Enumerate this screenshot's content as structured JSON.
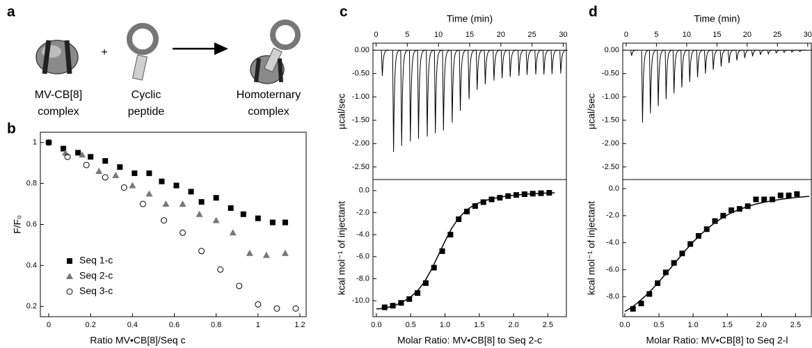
{
  "panel_labels": [
    "a",
    "b",
    "c",
    "d"
  ],
  "diagram": {
    "plus": "+",
    "items": [
      {
        "lines": [
          "MV-CB[8]",
          "complex"
        ]
      },
      {
        "lines": [
          "Cyclic",
          "peptide"
        ]
      },
      {
        "lines": [
          "Homoternary",
          "complex"
        ]
      }
    ]
  },
  "chart_data": [
    {
      "type": "scatter",
      "xlabel": "Ratio MV•CB[8]/Seq c",
      "ylabel": "F/F₀",
      "xlim": [
        -0.04,
        1.23
      ],
      "xticks": [
        0,
        0.2,
        0.4,
        0.6,
        0.8,
        1,
        1.2
      ],
      "ylim": [
        0.15,
        1.05
      ],
      "yticks": [
        0.2,
        0.4,
        0.6,
        0.8,
        1
      ],
      "legend": "lower left",
      "series": [
        {
          "name": "Seq 1-c",
          "marker": "square",
          "color": "#000000",
          "x": [
            0,
            0.07,
            0.14,
            0.2,
            0.27,
            0.34,
            0.41,
            0.48,
            0.54,
            0.61,
            0.68,
            0.73,
            0.8,
            0.87,
            0.93,
            1.0,
            1.07,
            1.13
          ],
          "values": [
            1.0,
            0.97,
            0.95,
            0.93,
            0.91,
            0.88,
            0.85,
            0.85,
            0.81,
            0.79,
            0.76,
            0.71,
            0.73,
            0.68,
            0.65,
            0.63,
            0.61,
            0.61
          ]
        },
        {
          "name": "Seq 2-c",
          "marker": "triangle",
          "color": "#777777",
          "x": [
            0.08,
            0.16,
            0.24,
            0.32,
            0.4,
            0.48,
            0.56,
            0.64,
            0.72,
            0.8,
            0.88,
            0.96,
            1.04,
            1.13
          ],
          "values": [
            0.95,
            0.94,
            0.86,
            0.84,
            0.79,
            0.75,
            0.7,
            0.7,
            0.65,
            0.62,
            0.56,
            0.46,
            0.45,
            0.46
          ]
        },
        {
          "name": "Seq 3-c",
          "marker": "circle",
          "color": "#000000",
          "x": [
            0,
            0.09,
            0.18,
            0.27,
            0.36,
            0.45,
            0.55,
            0.64,
            0.73,
            0.82,
            0.91,
            1.0,
            1.09,
            1.18
          ],
          "values": [
            1.0,
            0.93,
            0.89,
            0.83,
            0.78,
            0.7,
            0.62,
            0.56,
            0.47,
            0.38,
            0.3,
            0.21,
            0.19,
            0.19
          ]
        }
      ]
    },
    {
      "type": "thermogram",
      "xlabel": "Time (min)",
      "ylabel": "µcal/sec",
      "color": "#000000",
      "xlim": [
        -0.5,
        30.5
      ],
      "xticks": [
        0,
        5,
        10,
        15,
        20,
        25,
        30
      ],
      "ylim": [
        -2.77,
        0.15
      ],
      "yticks": [
        {
          "value": 0,
          "label": "0.00"
        },
        {
          "value": -0.5,
          "label": "-0.50"
        },
        {
          "value": -1,
          "label": "-1.00"
        },
        {
          "value": -1.5,
          "label": "-1.50"
        },
        {
          "value": -2,
          "label": "-2.00"
        },
        {
          "value": -2.5,
          "label": "-2.50"
        }
      ],
      "x": [
        0.9,
        2.7,
        4.0,
        5.4,
        6.7,
        8.1,
        9.4,
        10.7,
        12.1,
        13.4,
        14.8,
        16.1,
        17.4,
        18.8,
        20.1,
        21.4,
        22.8,
        24.1,
        25.5,
        26.8,
        28.1,
        29.5
      ],
      "values": [
        -0.55,
        -2.18,
        -2.05,
        -1.95,
        -1.9,
        -1.85,
        -1.78,
        -1.72,
        -1.55,
        -1.3,
        -1.05,
        -0.85,
        -0.73,
        -0.65,
        -0.6,
        -0.57,
        -0.55,
        -0.53,
        -0.52,
        -0.52,
        -0.51,
        -0.5
      ]
    },
    {
      "type": "isotherm",
      "xlabel": "Molar Ratio: MV•CB[8] to Seq 2-c",
      "ylabel": "kcal mol⁻¹ of injectant",
      "color": "#000000",
      "xlim": [
        -0.05,
        2.77
      ],
      "xticks": [
        {
          "value": 0,
          "label": "0.0"
        },
        {
          "value": 0.5,
          "label": "0.5"
        },
        {
          "value": 1,
          "label": "1.0"
        },
        {
          "value": 1.5,
          "label": "1.5"
        },
        {
          "value": 2,
          "label": "2.0"
        },
        {
          "value": 2.5,
          "label": "2.5"
        }
      ],
      "ylim": [
        -11.45,
        1.0
      ],
      "yticks": [
        {
          "value": 0,
          "label": "0.0"
        },
        {
          "value": -2,
          "label": "-2.0"
        },
        {
          "value": -4,
          "label": "-4.0"
        },
        {
          "value": -6,
          "label": "-6.0"
        },
        {
          "value": -8,
          "label": "-8.0"
        },
        {
          "value": -10,
          "label": "-10.0"
        }
      ],
      "x": [
        0.12,
        0.24,
        0.36,
        0.48,
        0.6,
        0.72,
        0.84,
        0.96,
        1.08,
        1.2,
        1.32,
        1.44,
        1.56,
        1.68,
        1.8,
        1.92,
        2.04,
        2.16,
        2.28,
        2.4,
        2.52
      ],
      "values": [
        -10.6,
        -10.45,
        -10.2,
        -9.85,
        -9.3,
        -8.4,
        -7.0,
        -5.5,
        -4.0,
        -2.6,
        -1.9,
        -1.4,
        -1.05,
        -0.8,
        -0.65,
        -0.5,
        -0.4,
        -0.33,
        -0.28,
        -0.24,
        -0.2
      ],
      "fit_x": [
        0,
        0.1,
        0.2,
        0.3,
        0.4,
        0.5,
        0.6,
        0.7,
        0.8,
        0.9,
        1.0,
        1.1,
        1.2,
        1.3,
        1.4,
        1.5,
        1.6,
        1.7,
        1.8,
        1.9,
        2.0,
        2.1,
        2.2,
        2.3,
        2.4,
        2.5,
        2.6
      ],
      "fit_values": [
        -10.75,
        -10.7,
        -10.55,
        -10.35,
        -10.05,
        -9.65,
        -9.1,
        -8.3,
        -7.2,
        -5.9,
        -4.6,
        -3.4,
        -2.5,
        -1.85,
        -1.4,
        -1.1,
        -0.88,
        -0.72,
        -0.6,
        -0.5,
        -0.43,
        -0.37,
        -0.32,
        -0.28,
        -0.25,
        -0.22,
        -0.2
      ]
    },
    {
      "type": "thermogram",
      "xlabel": "Time (min)",
      "ylabel": "µcal/sec",
      "color": "#000000",
      "xlim": [
        -0.57,
        30.6
      ],
      "xticks": [
        0,
        5,
        10,
        15,
        20,
        25,
        30
      ],
      "ylim": [
        -2.77,
        0.15
      ],
      "yticks": [
        {
          "value": 0,
          "label": "0.00"
        },
        {
          "value": -0.5,
          "label": "-0.50"
        },
        {
          "value": -1,
          "label": "-1.00"
        },
        {
          "value": -1.5,
          "label": "-1.50"
        },
        {
          "value": -2,
          "label": "-2.00"
        },
        {
          "value": -2.5,
          "label": "-2.50"
        }
      ],
      "x": [
        0.8,
        2.6,
        3.9,
        5.2,
        6.5,
        7.8,
        9.1,
        10.4,
        11.7,
        13.0,
        14.3,
        15.6,
        16.9,
        18.2,
        19.5,
        20.8,
        22.1,
        23.4,
        24.7,
        26.0,
        27.3,
        28.6
      ],
      "values": [
        -0.12,
        -1.55,
        -1.35,
        -1.2,
        -1.05,
        -0.92,
        -0.8,
        -0.68,
        -0.58,
        -0.5,
        -0.42,
        -0.35,
        -0.28,
        -0.22,
        -0.17,
        -0.13,
        -0.1,
        -0.08,
        -0.06,
        -0.05,
        -0.04,
        -0.03
      ]
    },
    {
      "type": "isotherm",
      "xlabel": "Molar Ratio: MV•CB[8] to Seq 2-l",
      "ylabel": "kcal mol⁻¹ of injectant",
      "color": "#000000",
      "xlim": [
        -0.03,
        2.73
      ],
      "xticks": [
        {
          "value": 0,
          "label": "0.0"
        },
        {
          "value": 0.5,
          "label": "0.5"
        },
        {
          "value": 1,
          "label": "1.0"
        },
        {
          "value": 1.5,
          "label": "1.5"
        },
        {
          "value": 2,
          "label": "2.0"
        },
        {
          "value": 2.5,
          "label": "2.5"
        }
      ],
      "ylim": [
        -9.48,
        0.67
      ],
      "yticks": [
        {
          "value": 0,
          "label": "0.0"
        },
        {
          "value": -2,
          "label": "-2.0"
        },
        {
          "value": -4,
          "label": "-4.0"
        },
        {
          "value": -6,
          "label": "-6.0"
        },
        {
          "value": -8,
          "label": "-8.0"
        }
      ],
      "x": [
        0.12,
        0.24,
        0.36,
        0.48,
        0.6,
        0.72,
        0.84,
        0.96,
        1.08,
        1.2,
        1.32,
        1.44,
        1.56,
        1.68,
        1.8,
        1.92,
        2.04,
        2.16,
        2.28,
        2.4,
        2.52
      ],
      "values": [
        -8.9,
        -8.5,
        -7.8,
        -7.0,
        -6.2,
        -5.5,
        -4.8,
        -4.1,
        -3.5,
        -3.0,
        -2.4,
        -2.0,
        -1.6,
        -1.5,
        -1.3,
        -0.8,
        -0.8,
        -0.8,
        -0.5,
        -0.5,
        -0.4
      ],
      "fit_x": [
        0,
        0.1,
        0.2,
        0.3,
        0.4,
        0.5,
        0.6,
        0.7,
        0.8,
        0.9,
        1.0,
        1.1,
        1.2,
        1.3,
        1.4,
        1.5,
        1.6,
        1.7,
        1.8,
        1.9,
        2.0,
        2.1,
        2.2,
        2.3,
        2.4,
        2.5,
        2.6,
        2.7
      ],
      "fit_values": [
        -9.1,
        -8.8,
        -8.4,
        -7.95,
        -7.45,
        -6.9,
        -6.3,
        -5.7,
        -5.1,
        -4.5,
        -3.95,
        -3.45,
        -3.0,
        -2.6,
        -2.25,
        -1.95,
        -1.7,
        -1.5,
        -1.32,
        -1.17,
        -1.05,
        -0.95,
        -0.86,
        -0.78,
        -0.72,
        -0.66,
        -0.61,
        -0.57
      ]
    }
  ]
}
